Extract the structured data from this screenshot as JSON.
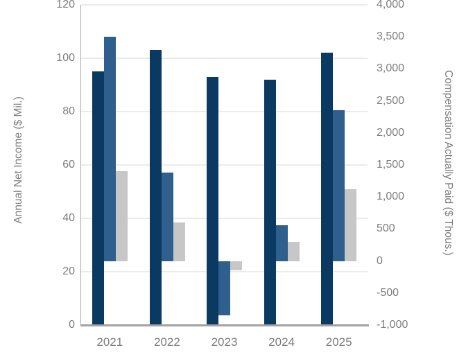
{
  "chart_data": {
    "type": "bar",
    "title": "",
    "categories": [
      "2021",
      "2022",
      "2023",
      "2024",
      "2025"
    ],
    "series": [
      {
        "name": "annual-net-income-navy",
        "axis": "left",
        "color_key": "navy",
        "values": [
          95,
          103,
          93,
          92,
          102
        ]
      },
      {
        "name": "compensation-actually-paid-blue",
        "axis": "right",
        "color_key": "blue",
        "values": [
          3500,
          1380,
          -850,
          560,
          2350
        ]
      },
      {
        "name": "compensation-actually-paid-gray",
        "axis": "right",
        "color_key": "gray",
        "values": [
          1400,
          600,
          -150,
          300,
          1120
        ]
      }
    ],
    "left_axis": {
      "title": "Annual Net Income ($ Mil.)",
      "min": 0,
      "max": 120,
      "tick_step": 20,
      "ticks_top_down": [
        "120",
        "100",
        "80",
        "60",
        "40",
        "20",
        "0"
      ]
    },
    "right_axis": {
      "title": "Compensation Actually Paid ($ Thous.)",
      "min": -1000,
      "max": 4000,
      "tick_step": 500,
      "ticks_top_down": [
        "4,000",
        "3,500",
        "3,000",
        "2,500",
        "2,000",
        "1,500",
        "1,000",
        "500",
        "0",
        "-500",
        "-1,000"
      ]
    },
    "colors": {
      "navy": "#0a3962",
      "blue": "#2f5f8c",
      "gray": "#c7c7c7"
    },
    "grid": "horizontal, aligned to left-axis ticks",
    "legend": "none"
  }
}
